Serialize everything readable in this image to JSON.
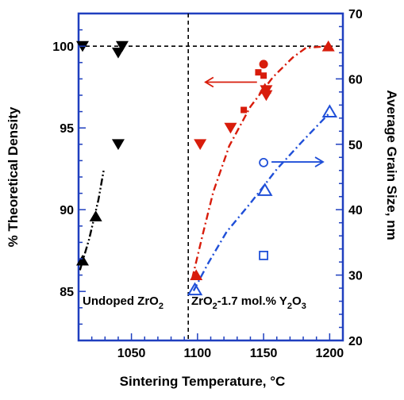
{
  "chart_data": {
    "type": "scatter",
    "xlabel": "Sintering Temperature, °C",
    "ylabel_left": "% Theoretical Density",
    "ylabel_right": "Average Grain Size, nm",
    "xlim": [
      1010,
      1210
    ],
    "ylim_left": [
      82,
      102
    ],
    "ylim_right": [
      20,
      70
    ],
    "x_ticks": [
      "1050",
      "1100",
      "1150",
      "1200"
    ],
    "y_ticks_left": [
      "85",
      "90",
      "95",
      "100"
    ],
    "y_ticks_right": [
      "20",
      "30",
      "40",
      "50",
      "60",
      "70"
    ],
    "colors": {
      "axis": "#1f3fbf",
      "red": "#d81c0b",
      "blue": "#1f4fd8",
      "black": "#000000"
    },
    "annotations": {
      "undoped": {
        "main": "Undoped ZrO",
        "sub": "2"
      },
      "doped": {
        "p1": "ZrO",
        "s1": "2",
        "p2": "-1.7 mol.% Y",
        "s2": "2",
        "p3": "O",
        "s3": "3"
      }
    },
    "reference_lines": {
      "horizontal_y": 100,
      "vertical_x": 1093
    },
    "series": [
      {
        "marker": "triangle-down",
        "color": "black",
        "axis": "left",
        "points": [
          [
            1013,
            100
          ],
          [
            1040,
            99.6
          ],
          [
            1043,
            100
          ],
          [
            1040,
            94
          ]
        ]
      },
      {
        "marker": "triangle-up",
        "color": "black",
        "axis": "left",
        "points": [
          [
            1013,
            86.9
          ],
          [
            1023,
            89.6
          ]
        ]
      },
      {
        "marker": "triangle-down",
        "color": "red",
        "axis": "left",
        "points": [
          [
            1102,
            94
          ],
          [
            1125,
            95
          ],
          [
            1152,
            97
          ],
          [
            1152,
            97.3
          ]
        ]
      },
      {
        "marker": "triangle-up",
        "color": "red",
        "axis": "left",
        "points": [
          [
            1099,
            86
          ],
          [
            1151,
            97.4
          ],
          [
            1199,
            100
          ]
        ]
      },
      {
        "marker": "square",
        "color": "red",
        "axis": "left",
        "points": [
          [
            1135,
            96.1
          ],
          [
            1146,
            98.4
          ],
          [
            1150,
            98.2
          ]
        ]
      },
      {
        "marker": "circle",
        "color": "red",
        "axis": "left",
        "points": [
          [
            1150,
            98.9
          ]
        ]
      },
      {
        "marker": "triangle-up-open",
        "color": "blue",
        "axis": "right",
        "points": [
          [
            1098,
            27.8
          ],
          [
            1151,
            43
          ],
          [
            1200,
            55
          ]
        ]
      },
      {
        "marker": "circle-open",
        "color": "blue",
        "axis": "right",
        "points": [
          [
            1150,
            47.2
          ]
        ]
      },
      {
        "marker": "square-open",
        "color": "blue",
        "axis": "right",
        "points": [
          [
            1150,
            33
          ]
        ]
      }
    ],
    "fit_lines": [
      {
        "color": "black",
        "axis": "left",
        "style": "dashdot2",
        "points": [
          [
            1011,
            86.3
          ],
          [
            1018,
            88.2
          ],
          [
            1025,
            90.6
          ],
          [
            1029,
            92.4
          ]
        ]
      },
      {
        "color": "red",
        "axis": "left",
        "style": "dashdot",
        "points": [
          [
            1096,
            85.8
          ],
          [
            1104,
            88.5
          ],
          [
            1112,
            91.1
          ],
          [
            1124,
            93.9
          ],
          [
            1140,
            96.3
          ],
          [
            1157,
            98.1
          ],
          [
            1172,
            99.3
          ],
          [
            1182,
            99.9
          ],
          [
            1200,
            100
          ]
        ]
      },
      {
        "color": "blue",
        "axis": "right",
        "style": "dashdot",
        "points": [
          [
            1097,
            27.6
          ],
          [
            1108,
            31.8
          ],
          [
            1122,
            36.6
          ],
          [
            1140,
            41
          ],
          [
            1160,
            46.2
          ],
          [
            1180,
            50.6
          ],
          [
            1200,
            54.8
          ]
        ]
      }
    ],
    "arrows": [
      {
        "color": "red",
        "direction": "left",
        "from": [
          1145,
          97.8
        ],
        "to": [
          1106,
          97.8
        ]
      },
      {
        "color": "blue",
        "direction": "right",
        "from": [
          1156,
          47.3
        ],
        "to": [
          1195,
          47.3
        ]
      }
    ]
  }
}
